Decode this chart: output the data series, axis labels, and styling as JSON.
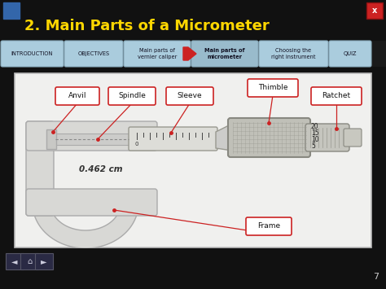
{
  "title": "2. Main Parts of a Micrometer",
  "title_color": "#FFD700",
  "bg_color": "#111111",
  "nav_bg": "#222222",
  "page_num": "7",
  "nav_items": [
    "INTRODUCTION",
    "OBJECTIVES",
    "Main parts of\nvernier caliper",
    "Main parts of\nmicrometer",
    "Choosing the\nright instrument",
    "QUIZ"
  ],
  "nav_active": 3,
  "labels": [
    "Anvil",
    "Spindle",
    "Sleeve",
    "Thimble",
    "Ratchet",
    "Frame"
  ],
  "measurement": "0.462 cm",
  "diagram_bg": "#f0f0ee",
  "label_box_color": "#ffffff",
  "label_border_color": "#cc2222",
  "label_text_color": "#111111",
  "line_color": "#cc2222",
  "frame_color": "#d8d8d5",
  "frame_edge": "#aaaaaa",
  "nav_btn_color": "#aaccdd",
  "nav_btn_edge": "#99bbcc"
}
